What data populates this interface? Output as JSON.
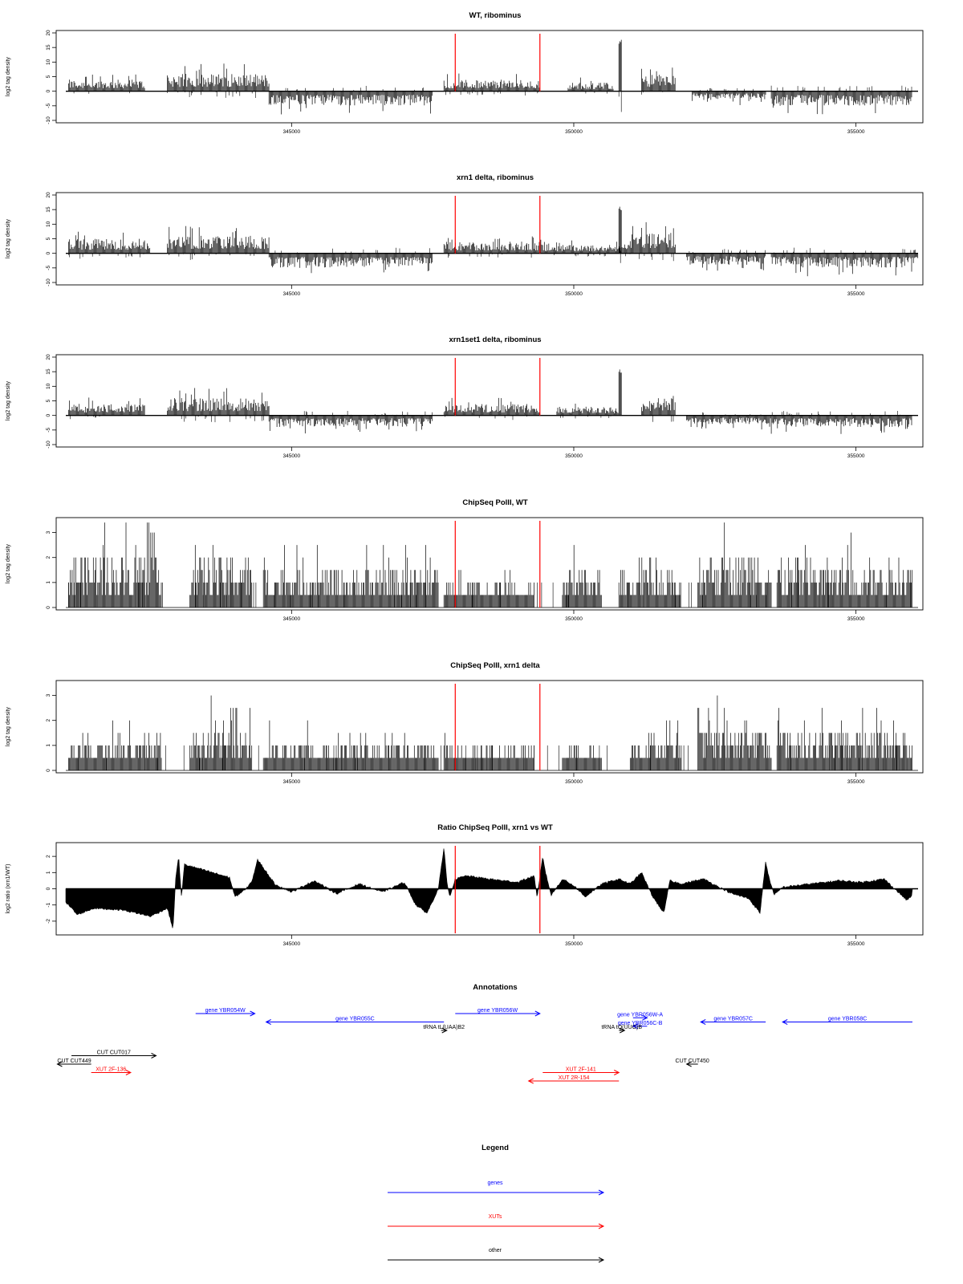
{
  "chart_data": [
    {
      "type": "bar",
      "title": "WT, ribominus",
      "ylabel": "log2 tag density",
      "ylim": [
        -10,
        20
      ],
      "yticks": [
        -10,
        -5,
        0,
        5,
        10,
        15,
        20
      ],
      "xlim": [
        341000,
        356100
      ],
      "xticks": [
        345000,
        350000,
        355000
      ],
      "markers": [
        347900,
        349400
      ],
      "profile": [
        {
          "from": 341050,
          "to": 342400,
          "amp": 4,
          "dir": 1
        },
        {
          "from": 342800,
          "to": 344600,
          "amp": 6,
          "dir": 1
        },
        {
          "from": 344600,
          "to": 347500,
          "amp": 5,
          "dir": -1
        },
        {
          "from": 347700,
          "to": 349400,
          "amp": 4,
          "dir": 1
        },
        {
          "from": 349900,
          "to": 350700,
          "amp": 3,
          "dir": 1
        },
        {
          "from": 350800,
          "to": 350850,
          "amp": 18,
          "dir": 1
        },
        {
          "from": 351200,
          "to": 351800,
          "amp": 6,
          "dir": 1
        },
        {
          "from": 352100,
          "to": 353400,
          "amp": 3,
          "dir": -1
        },
        {
          "from": 353500,
          "to": 356000,
          "amp": 5,
          "dir": -1
        }
      ]
    },
    {
      "type": "bar",
      "title": "xrn1 delta, ribominus",
      "ylabel": "log2 tag density",
      "ylim": [
        -10,
        20
      ],
      "yticks": [
        -10,
        -5,
        0,
        5,
        10,
        15,
        20
      ],
      "xlim": [
        341000,
        356100
      ],
      "xticks": [
        345000,
        350000,
        355000
      ],
      "markers": [
        347900,
        349400
      ],
      "profile": [
        {
          "from": 341050,
          "to": 342500,
          "amp": 5,
          "dir": 1
        },
        {
          "from": 342800,
          "to": 344600,
          "amp": 6,
          "dir": 1
        },
        {
          "from": 344600,
          "to": 347500,
          "amp": 5,
          "dir": -1
        },
        {
          "from": 347700,
          "to": 349400,
          "amp": 4,
          "dir": 1
        },
        {
          "from": 349400,
          "to": 351000,
          "amp": 3,
          "dir": 1
        },
        {
          "from": 350800,
          "to": 350850,
          "amp": 16,
          "dir": 1
        },
        {
          "from": 351000,
          "to": 351800,
          "amp": 7,
          "dir": 1
        },
        {
          "from": 352000,
          "to": 353400,
          "amp": 4,
          "dir": -1
        },
        {
          "from": 353500,
          "to": 356100,
          "amp": 5,
          "dir": -1
        }
      ]
    },
    {
      "type": "bar",
      "title": "xrn1set1 delta, ribominus",
      "ylabel": "log2 tag density",
      "ylim": [
        -10,
        20
      ],
      "yticks": [
        -10,
        -5,
        0,
        5,
        10,
        15,
        20
      ],
      "xlim": [
        341000,
        356100
      ],
      "xticks": [
        345000,
        350000,
        355000
      ],
      "markers": [
        347900,
        349400
      ],
      "profile": [
        {
          "from": 341050,
          "to": 342400,
          "amp": 4,
          "dir": 1
        },
        {
          "from": 342800,
          "to": 344600,
          "amp": 6,
          "dir": 1
        },
        {
          "from": 344600,
          "to": 347500,
          "amp": 4,
          "dir": -1
        },
        {
          "from": 347700,
          "to": 349400,
          "amp": 4,
          "dir": 1
        },
        {
          "from": 349700,
          "to": 350800,
          "amp": 3,
          "dir": 1
        },
        {
          "from": 350800,
          "to": 350850,
          "amp": 16,
          "dir": 1
        },
        {
          "from": 351200,
          "to": 351800,
          "amp": 6,
          "dir": 1
        },
        {
          "from": 352000,
          "to": 353500,
          "amp": 3,
          "dir": -1
        },
        {
          "from": 353500,
          "to": 356000,
          "amp": 4,
          "dir": -1
        }
      ]
    },
    {
      "type": "bar",
      "title": "ChipSeq PolII, WT",
      "ylabel": "log2 tag density",
      "ylim": [
        0,
        3.5
      ],
      "yticks": [
        0.0,
        1.0,
        2.0,
        3.0
      ],
      "xlim": [
        341000,
        356100
      ],
      "xticks": [
        345000,
        350000,
        355000
      ],
      "markers": [
        347900,
        349400
      ],
      "profile": [
        {
          "from": 341050,
          "to": 342700,
          "amp": 2.2,
          "dir": 1
        },
        {
          "from": 343200,
          "to": 344300,
          "amp": 2.0,
          "dir": 1
        },
        {
          "from": 344500,
          "to": 347600,
          "amp": 1.6,
          "dir": 1
        },
        {
          "from": 347700,
          "to": 349300,
          "amp": 0.9,
          "dir": 1
        },
        {
          "from": 349800,
          "to": 350500,
          "amp": 1.5,
          "dir": 1
        },
        {
          "from": 350800,
          "to": 351900,
          "amp": 1.4,
          "dir": 1
        },
        {
          "from": 352200,
          "to": 353500,
          "amp": 2.3,
          "dir": 1
        },
        {
          "from": 353600,
          "to": 356000,
          "amp": 1.9,
          "dir": 1
        }
      ]
    },
    {
      "type": "bar",
      "title": "ChipSeq PolII, xrn1 delta",
      "ylabel": "log2 tag density",
      "ylim": [
        0,
        3.5
      ],
      "yticks": [
        0.0,
        1.0,
        2.0,
        3.0
      ],
      "xlim": [
        341000,
        356100
      ],
      "xticks": [
        345000,
        350000,
        355000
      ],
      "markers": [
        347900,
        349400
      ],
      "profile": [
        {
          "from": 341050,
          "to": 342700,
          "amp": 1.3,
          "dir": 1
        },
        {
          "from": 343200,
          "to": 344300,
          "amp": 1.8,
          "dir": 1
        },
        {
          "from": 344500,
          "to": 347600,
          "amp": 1.2,
          "dir": 1
        },
        {
          "from": 347700,
          "to": 349300,
          "amp": 0.8,
          "dir": 1
        },
        {
          "from": 349800,
          "to": 350500,
          "amp": 1.0,
          "dir": 1
        },
        {
          "from": 351000,
          "to": 351900,
          "amp": 1.4,
          "dir": 1
        },
        {
          "from": 352200,
          "to": 353500,
          "amp": 1.8,
          "dir": 1
        },
        {
          "from": 353600,
          "to": 356000,
          "amp": 1.7,
          "dir": 1
        }
      ]
    },
    {
      "type": "area",
      "title": "Ratio ChipSeq PolII, xrn1 vs WT",
      "ylabel": "log2 ratio (xrn1/WT)",
      "ylim": [
        -2.7,
        2.7
      ],
      "yticks": [
        -2,
        -1,
        0,
        1,
        2
      ],
      "xlim": [
        341000,
        356100
      ],
      "xticks": [
        345000,
        350000,
        355000
      ],
      "markers": [
        347900,
        349400
      ],
      "x": [
        341000,
        341200,
        341500,
        342000,
        342500,
        342800,
        342900,
        342950,
        343000,
        343050,
        343100,
        343300,
        343600,
        343900,
        344000,
        344200,
        344300,
        344400,
        344700,
        345000,
        345400,
        345800,
        346200,
        346600,
        347000,
        347200,
        347400,
        347600,
        347700,
        347750,
        347800,
        347900,
        348100,
        348500,
        349000,
        349300,
        349350,
        349450,
        349500,
        349600,
        349800,
        350000,
        350200,
        350500,
        350800,
        351000,
        351200,
        351400,
        351600,
        351700,
        351900,
        352300,
        352800,
        353100,
        353300,
        353400,
        353450,
        353550,
        353700,
        354200,
        354700,
        355100,
        355500,
        355900,
        356000
      ],
      "y": [
        -0.8,
        -1.6,
        -1.2,
        -1.3,
        -1.7,
        -1.2,
        -2.5,
        0.8,
        2.0,
        -0.6,
        1.5,
        1.3,
        1.0,
        0.7,
        -0.5,
        0.0,
        0.5,
        1.8,
        0.3,
        -0.2,
        0.5,
        -0.3,
        0.3,
        -0.2,
        0.4,
        -1.0,
        -1.5,
        0.0,
        2.5,
        0.5,
        -0.5,
        0.6,
        0.8,
        0.6,
        0.4,
        0.8,
        -0.6,
        2.0,
        1.0,
        -0.4,
        0.6,
        0.2,
        -0.5,
        0.3,
        0.6,
        0.3,
        1.0,
        -0.5,
        -1.5,
        0.5,
        0.3,
        0.6,
        -0.3,
        -0.6,
        -1.5,
        1.7,
        0.8,
        -0.4,
        0.1,
        0.3,
        0.5,
        0.4,
        0.6,
        -0.7,
        -0.4
      ]
    }
  ],
  "annotations": {
    "title": "Annotations",
    "xlim": [
      341000,
      356100
    ],
    "items": [
      {
        "label": "gene YBR054W",
        "from": 343300,
        "to": 344350,
        "row": 1,
        "color": "#0000ff",
        "dir": "right"
      },
      {
        "label": "gene YBR055C",
        "from": 344550,
        "to": 347700,
        "row": 2,
        "color": "#0000ff",
        "dir": "left"
      },
      {
        "label": "gene YBR056W",
        "from": 347900,
        "to": 349400,
        "row": 1,
        "color": "#0000ff",
        "dir": "right"
      },
      {
        "label": "gene YBR056W-A",
        "from": 351050,
        "to": 351300,
        "row": 1.5,
        "color": "#0000ff",
        "dir": "right"
      },
      {
        "label": "gene YBR056C-B",
        "from": 351050,
        "to": 351300,
        "row": 2.5,
        "color": "#0000ff",
        "dir": "left"
      },
      {
        "label": "gene YBR057C",
        "from": 352250,
        "to": 353400,
        "row": 2,
        "color": "#0000ff",
        "dir": "left"
      },
      {
        "label": "gene YBR058C",
        "from": 353700,
        "to": 356000,
        "row": 2,
        "color": "#0000ff",
        "dir": "left"
      },
      {
        "label": "tRNA tL(UAA)B2",
        "from": 347650,
        "to": 347750,
        "row": 3,
        "color": "#000000",
        "dir": "right"
      },
      {
        "label": "tRNA tQ(UUG)B",
        "from": 350800,
        "to": 350900,
        "row": 3,
        "color": "#000000",
        "dir": "right"
      },
      {
        "label": "CUT CUT017",
        "from": 341100,
        "to": 342600,
        "row": 6,
        "color": "#000000",
        "dir": "right"
      },
      {
        "label": "CUT CUT449",
        "from": 340850,
        "to": 341450,
        "row": 7,
        "color": "#000000",
        "dir": "left"
      },
      {
        "label": "XUT 2F-136",
        "from": 341450,
        "to": 342150,
        "row": 8,
        "color": "#ff0000",
        "dir": "right"
      },
      {
        "label": "XUT 2F-141",
        "from": 349450,
        "to": 350800,
        "row": 8,
        "color": "#ff0000",
        "dir": "right"
      },
      {
        "label": "XUT 2R-154",
        "from": 349200,
        "to": 350800,
        "row": 9,
        "color": "#ff0000",
        "dir": "left"
      },
      {
        "label": "CUT CUT450",
        "from": 352000,
        "to": 352200,
        "row": 7,
        "color": "#000000",
        "dir": "left"
      }
    ]
  },
  "legend": {
    "title": "Legend",
    "items": [
      {
        "label": "genes",
        "color": "#0000ff"
      },
      {
        "label": "XUTs",
        "color": "#ff0000"
      },
      {
        "label": "other",
        "color": "#000000"
      }
    ]
  }
}
